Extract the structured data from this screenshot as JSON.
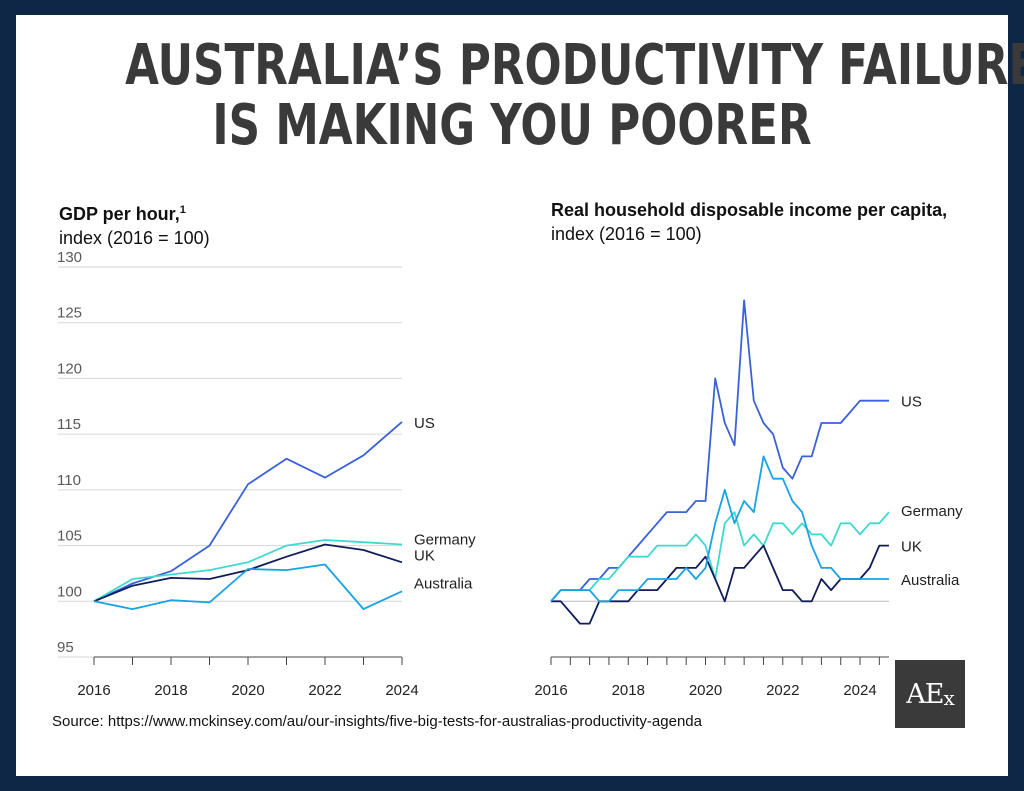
{
  "headline": {
    "line1": "AUSTRALIA’S PRODUCTIVITY FAILURE",
    "line2": "IS MAKING YOU POORER"
  },
  "source": "Source: https://www.mckinsey.com/au/our-insights/five-big-tests-for-australias-productivity-agenda",
  "logo": {
    "main": "AE",
    "sub": "x"
  },
  "colors": {
    "US": "#3a62d8",
    "Germany": "#3fd9d0",
    "UK": "#101d59",
    "Australia": "#1aa2e2",
    "grid": "#d6d6d6",
    "axis_text": "#5a5a5a"
  },
  "chart_data": [
    {
      "type": "line",
      "title": "GDP per hour,",
      "title_footnote": "1",
      "subtitle": "index (2016 = 100)",
      "xlabel": "",
      "ylabel": "",
      "xlim": [
        2016,
        2024
      ],
      "ylim": [
        95,
        130
      ],
      "yticks": [
        95,
        100,
        105,
        110,
        115,
        120,
        125,
        130
      ],
      "xticks": [
        2016,
        2018,
        2020,
        2022,
        2024
      ],
      "grid": true,
      "series": [
        {
          "name": "US",
          "x": [
            2016,
            2017,
            2018,
            2019,
            2020,
            2021,
            2022,
            2023,
            2024
          ],
          "values": [
            100,
            101.6,
            102.7,
            105,
            110.5,
            112.8,
            111.1,
            113.1,
            116.1
          ]
        },
        {
          "name": "Germany",
          "x": [
            2016,
            2017,
            2018,
            2019,
            2020,
            2021,
            2022,
            2023,
            2024
          ],
          "values": [
            100,
            102,
            102.4,
            102.8,
            103.5,
            105,
            105.5,
            105.3,
            105.1
          ]
        },
        {
          "name": "UK",
          "x": [
            2016,
            2017,
            2018,
            2019,
            2020,
            2021,
            2022,
            2023,
            2024
          ],
          "values": [
            100,
            101.4,
            102.1,
            102,
            102.8,
            104,
            105.1,
            104.6,
            103.5
          ]
        },
        {
          "name": "Australia",
          "x": [
            2016,
            2017,
            2018,
            2019,
            2020,
            2021,
            2022,
            2023,
            2024
          ],
          "values": [
            100,
            99.3,
            100.1,
            99.9,
            102.9,
            102.8,
            103.3,
            99.3,
            100.9
          ]
        }
      ]
    },
    {
      "type": "line",
      "title": "Real household disposable income per capita,",
      "subtitle": "index (2016 = 100)",
      "xlabel": "",
      "ylabel": "",
      "xlim": [
        2016,
        2024.75
      ],
      "ylim": [
        95,
        130
      ],
      "xticks": [
        2016,
        2018,
        2020,
        2022,
        2024
      ],
      "grid": false,
      "series": [
        {
          "name": "US",
          "x": [
            2016,
            2016.25,
            2016.5,
            2016.75,
            2017,
            2017.25,
            2017.5,
            2017.75,
            2018,
            2018.25,
            2018.5,
            2018.75,
            2019,
            2019.25,
            2019.5,
            2019.75,
            2020,
            2020.25,
            2020.5,
            2020.75,
            2021,
            2021.25,
            2021.5,
            2021.75,
            2022,
            2022.25,
            2022.5,
            2022.75,
            2023,
            2023.25,
            2023.5,
            2023.75,
            2024,
            2024.25,
            2024.5,
            2024.75
          ],
          "values": [
            100,
            101,
            101,
            101,
            102,
            102,
            103,
            103,
            104,
            105,
            106,
            107,
            108,
            108,
            108,
            109,
            109,
            120,
            116,
            114,
            127,
            118,
            116,
            115,
            112,
            111,
            113,
            113,
            116,
            116,
            116,
            117,
            118,
            118,
            118,
            118
          ]
        },
        {
          "name": "Germany",
          "x": [
            2016,
            2016.25,
            2016.5,
            2016.75,
            2017,
            2017.25,
            2017.5,
            2017.75,
            2018,
            2018.25,
            2018.5,
            2018.75,
            2019,
            2019.25,
            2019.5,
            2019.75,
            2020,
            2020.25,
            2020.5,
            2020.75,
            2021,
            2021.25,
            2021.5,
            2021.75,
            2022,
            2022.25,
            2022.5,
            2022.75,
            2023,
            2023.25,
            2023.5,
            2023.75,
            2024,
            2024.25,
            2024.5,
            2024.75
          ],
          "values": [
            100,
            101,
            101,
            101,
            101,
            102,
            102,
            103,
            104,
            104,
            104,
            105,
            105,
            105,
            105,
            106,
            105,
            102,
            107,
            108,
            105,
            106,
            105,
            107,
            107,
            106,
            107,
            106,
            106,
            105,
            107,
            107,
            106,
            107,
            107,
            108
          ]
        },
        {
          "name": "UK",
          "x": [
            2016,
            2016.25,
            2016.5,
            2016.75,
            2017,
            2017.25,
            2017.5,
            2017.75,
            2018,
            2018.25,
            2018.5,
            2018.75,
            2019,
            2019.25,
            2019.5,
            2019.75,
            2020,
            2020.25,
            2020.5,
            2020.75,
            2021,
            2021.25,
            2021.5,
            2021.75,
            2022,
            2022.25,
            2022.5,
            2022.75,
            2023,
            2023.25,
            2023.5,
            2023.75,
            2024,
            2024.25,
            2024.5,
            2024.75
          ],
          "values": [
            100,
            100,
            99,
            98,
            98,
            100,
            100,
            100,
            100,
            101,
            101,
            101,
            102,
            103,
            103,
            103,
            104,
            102,
            100,
            103,
            103,
            104,
            105,
            103,
            101,
            101,
            100,
            100,
            102,
            101,
            102,
            102,
            102,
            103,
            105,
            105
          ]
        },
        {
          "name": "Australia",
          "x": [
            2016,
            2016.25,
            2016.5,
            2016.75,
            2017,
            2017.25,
            2017.5,
            2017.75,
            2018,
            2018.25,
            2018.5,
            2018.75,
            2019,
            2019.25,
            2019.5,
            2019.75,
            2020,
            2020.25,
            2020.5,
            2020.75,
            2021,
            2021.25,
            2021.5,
            2021.75,
            2022,
            2022.25,
            2022.5,
            2022.75,
            2023,
            2023.25,
            2023.5,
            2023.75,
            2024,
            2024.25,
            2024.5,
            2024.75
          ],
          "values": [
            100,
            101,
            101,
            101,
            101,
            100,
            100,
            101,
            101,
            101,
            102,
            102,
            102,
            102,
            103,
            102,
            103,
            107,
            110,
            107,
            109,
            108,
            113,
            111,
            111,
            109,
            108,
            105,
            103,
            103,
            102,
            102,
            102,
            102,
            102,
            102
          ]
        }
      ]
    }
  ]
}
